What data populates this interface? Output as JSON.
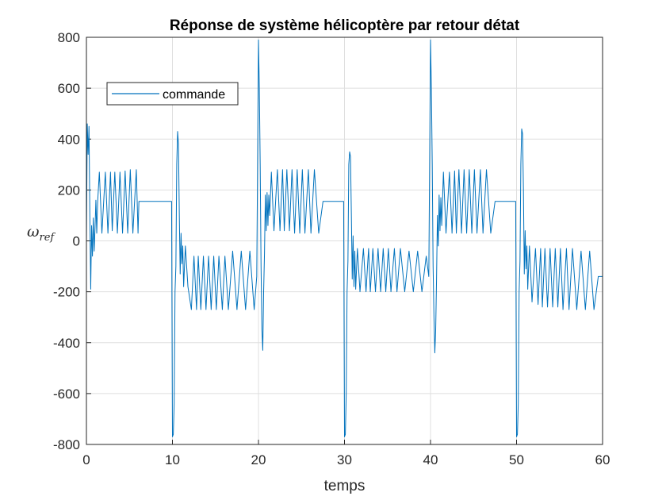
{
  "chart_data": {
    "type": "line",
    "title": "Réponse de système hélicoptère par retour détat",
    "xlabel": "temps",
    "ylabel_main": "ω",
    "ylabel_sub": "ref",
    "xlim": [
      0,
      60
    ],
    "ylim": [
      -800,
      800
    ],
    "xticks": [
      0,
      10,
      20,
      30,
      40,
      50,
      60
    ],
    "yticks": [
      -800,
      -600,
      -400,
      -200,
      0,
      200,
      400,
      600,
      800
    ],
    "xtick_labels": [
      "0",
      "10",
      "20",
      "30",
      "40",
      "50",
      "60"
    ],
    "ytick_labels": [
      "-800",
      "-600",
      "-400",
      "-200",
      "0",
      "200",
      "400",
      "600",
      "800"
    ],
    "grid": true,
    "legend": {
      "position": "top-left",
      "entries": [
        "commande"
      ]
    },
    "colors": {
      "series": "#0072BD",
      "grid": "#dfdfdf",
      "axes": "#262626"
    },
    "series": [
      {
        "name": "commande",
        "x": [
          0,
          0.1,
          0.2,
          0.3,
          0.4,
          0.5,
          0.6,
          0.7,
          0.8,
          0.9,
          1.0,
          1.1,
          1.2,
          1.3,
          1.5,
          1.8,
          2.2,
          2.5,
          2.8,
          3.0,
          3.3,
          3.6,
          3.9,
          4.2,
          4.5,
          4.8,
          5.1,
          5.4,
          5.8,
          6.0,
          6.1,
          9.9,
          10.0,
          10.1,
          10.2,
          10.3,
          10.4,
          10.5,
          10.6,
          10.7,
          10.8,
          10.9,
          11.0,
          11.1,
          11.2,
          11.3,
          11.5,
          11.8,
          12.2,
          12.5,
          12.8,
          13.0,
          13.3,
          13.6,
          13.9,
          14.2,
          14.5,
          14.8,
          15.1,
          15.4,
          15.8,
          16.1,
          16.5,
          17.0,
          17.5,
          18.0,
          18.5,
          19.0,
          19.5,
          19.8,
          20.0,
          20.1,
          20.2,
          20.3,
          20.4,
          20.5,
          20.6,
          20.7,
          20.8,
          20.9,
          21.0,
          21.1,
          21.2,
          21.3,
          21.5,
          21.8,
          22.2,
          22.5,
          22.8,
          23.0,
          23.3,
          23.6,
          23.9,
          24.2,
          24.5,
          24.8,
          25.1,
          25.4,
          25.8,
          26.1,
          26.5,
          27.0,
          27.5,
          29.9,
          30.0,
          30.1,
          30.2,
          30.3,
          30.4,
          30.5,
          30.6,
          30.7,
          30.8,
          30.9,
          31.0,
          31.1,
          31.2,
          31.3,
          31.5,
          31.8,
          32.2,
          32.5,
          32.8,
          33.0,
          33.3,
          33.6,
          33.9,
          34.2,
          34.5,
          34.8,
          35.1,
          35.4,
          35.8,
          36.1,
          36.5,
          37.0,
          37.5,
          38.0,
          38.5,
          39.0,
          39.5,
          39.8,
          40.0,
          40.1,
          40.2,
          40.3,
          40.4,
          40.5,
          40.6,
          40.7,
          40.8,
          40.9,
          41.0,
          41.1,
          41.2,
          41.3,
          41.5,
          41.8,
          42.2,
          42.5,
          42.8,
          43.0,
          43.3,
          43.6,
          43.9,
          44.2,
          44.5,
          44.8,
          45.1,
          45.4,
          45.8,
          46.1,
          46.5,
          47.0,
          47.5,
          49.9,
          50.0,
          50.1,
          50.2,
          50.3,
          50.4,
          50.5,
          50.6,
          50.7,
          50.8,
          50.9,
          51.0,
          51.1,
          51.2,
          51.3,
          51.5,
          51.8,
          52.2,
          52.5,
          52.8,
          53.0,
          53.3,
          53.6,
          53.9,
          54.2,
          54.5,
          54.8,
          55.1,
          55.4,
          55.8,
          56.1,
          56.5,
          57.0,
          57.5,
          58.0,
          58.5,
          59.0,
          59.5,
          60.0
        ],
        "y": [
          0,
          460,
          340,
          450,
          100,
          -190,
          60,
          -60,
          90,
          -40,
          50,
          160,
          30,
          150,
          270,
          30,
          270,
          30,
          270,
          40,
          270,
          30,
          270,
          30,
          275,
          30,
          280,
          30,
          280,
          30,
          155,
          155,
          -770,
          -760,
          -640,
          -200,
          -100,
          300,
          430,
          380,
          100,
          -130,
          30,
          -90,
          -20,
          -180,
          -20,
          -180,
          -270,
          -60,
          -270,
          -60,
          -270,
          -60,
          -270,
          -60,
          -270,
          -60,
          -270,
          -60,
          -270,
          -60,
          -270,
          -40,
          -270,
          -40,
          -270,
          -40,
          -270,
          -140,
          790,
          600,
          300,
          -100,
          -350,
          -430,
          -200,
          -50,
          180,
          40,
          190,
          60,
          180,
          100,
          270,
          40,
          280,
          40,
          280,
          40,
          280,
          40,
          280,
          30,
          280,
          30,
          280,
          30,
          280,
          30,
          280,
          30,
          155,
          155,
          -770,
          -760,
          -600,
          -200,
          -80,
          300,
          350,
          330,
          100,
          -150,
          20,
          -180,
          -40,
          -190,
          -30,
          -200,
          -30,
          -200,
          -30,
          -200,
          -30,
          -200,
          -30,
          -200,
          -30,
          -200,
          -30,
          -200,
          -30,
          -200,
          -30,
          -200,
          -40,
          -200,
          -40,
          -200,
          -60,
          -140,
          790,
          600,
          300,
          -100,
          -300,
          -440,
          -350,
          -150,
          100,
          -20,
          180,
          40,
          170,
          60,
          270,
          30,
          270,
          30,
          275,
          30,
          280,
          30,
          280,
          30,
          280,
          30,
          280,
          30,
          280,
          30,
          280,
          30,
          155,
          155,
          -770,
          -760,
          -640,
          -200,
          -80,
          300,
          440,
          420,
          200,
          -130,
          40,
          -110,
          -20,
          -190,
          -20,
          -240,
          -30,
          -250,
          -30,
          -260,
          -30,
          -260,
          -30,
          -260,
          -30,
          -260,
          -30,
          -270,
          -30,
          -270,
          -30,
          -270,
          -40,
          -270,
          -40,
          -270,
          -140,
          -140
        ]
      }
    ]
  }
}
